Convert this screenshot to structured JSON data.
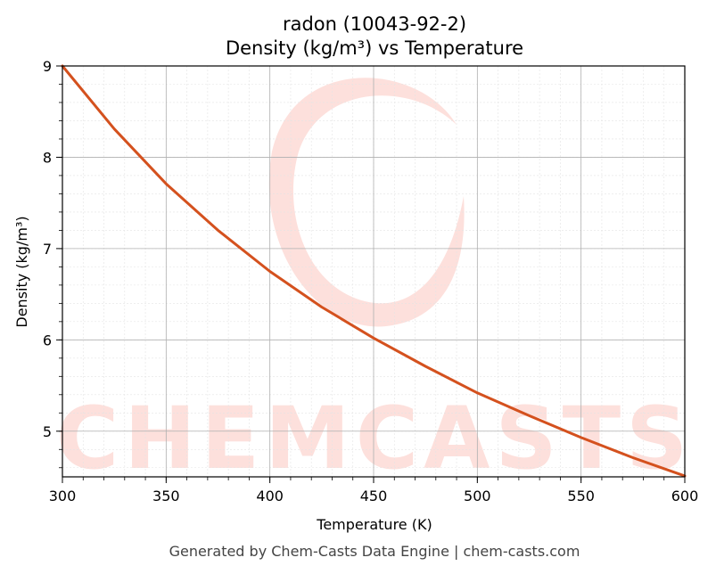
{
  "chart_data": {
    "type": "line",
    "title": "radon (10043-92-2)",
    "subtitle": "Density (kg/m³) vs Temperature",
    "xlabel": "Temperature (K)",
    "ylabel": "Density (kg/m³)",
    "xlim": [
      300,
      600
    ],
    "ylim": [
      4.5,
      9.0
    ],
    "x_ticks": [
      300,
      350,
      400,
      450,
      500,
      550,
      600
    ],
    "y_ticks": [
      5,
      6,
      7,
      8,
      9
    ],
    "x_minor_step": 10,
    "y_minor_step": 0.2,
    "grid": true,
    "legend": "none",
    "series": [
      {
        "color": "#d4511e",
        "x": [
          300,
          325,
          350,
          375,
          400,
          425,
          450,
          475,
          500,
          525,
          550,
          575,
          600
        ],
        "y": [
          9.0,
          8.31,
          7.71,
          7.2,
          6.75,
          6.36,
          6.02,
          5.71,
          5.42,
          5.17,
          4.93,
          4.71,
          4.51
        ]
      }
    ]
  },
  "watermark": {
    "text": "CHEMCASTS",
    "color": "#fde0dc"
  },
  "footer": "Generated by Chem-Casts Data Engine | chem-casts.com"
}
